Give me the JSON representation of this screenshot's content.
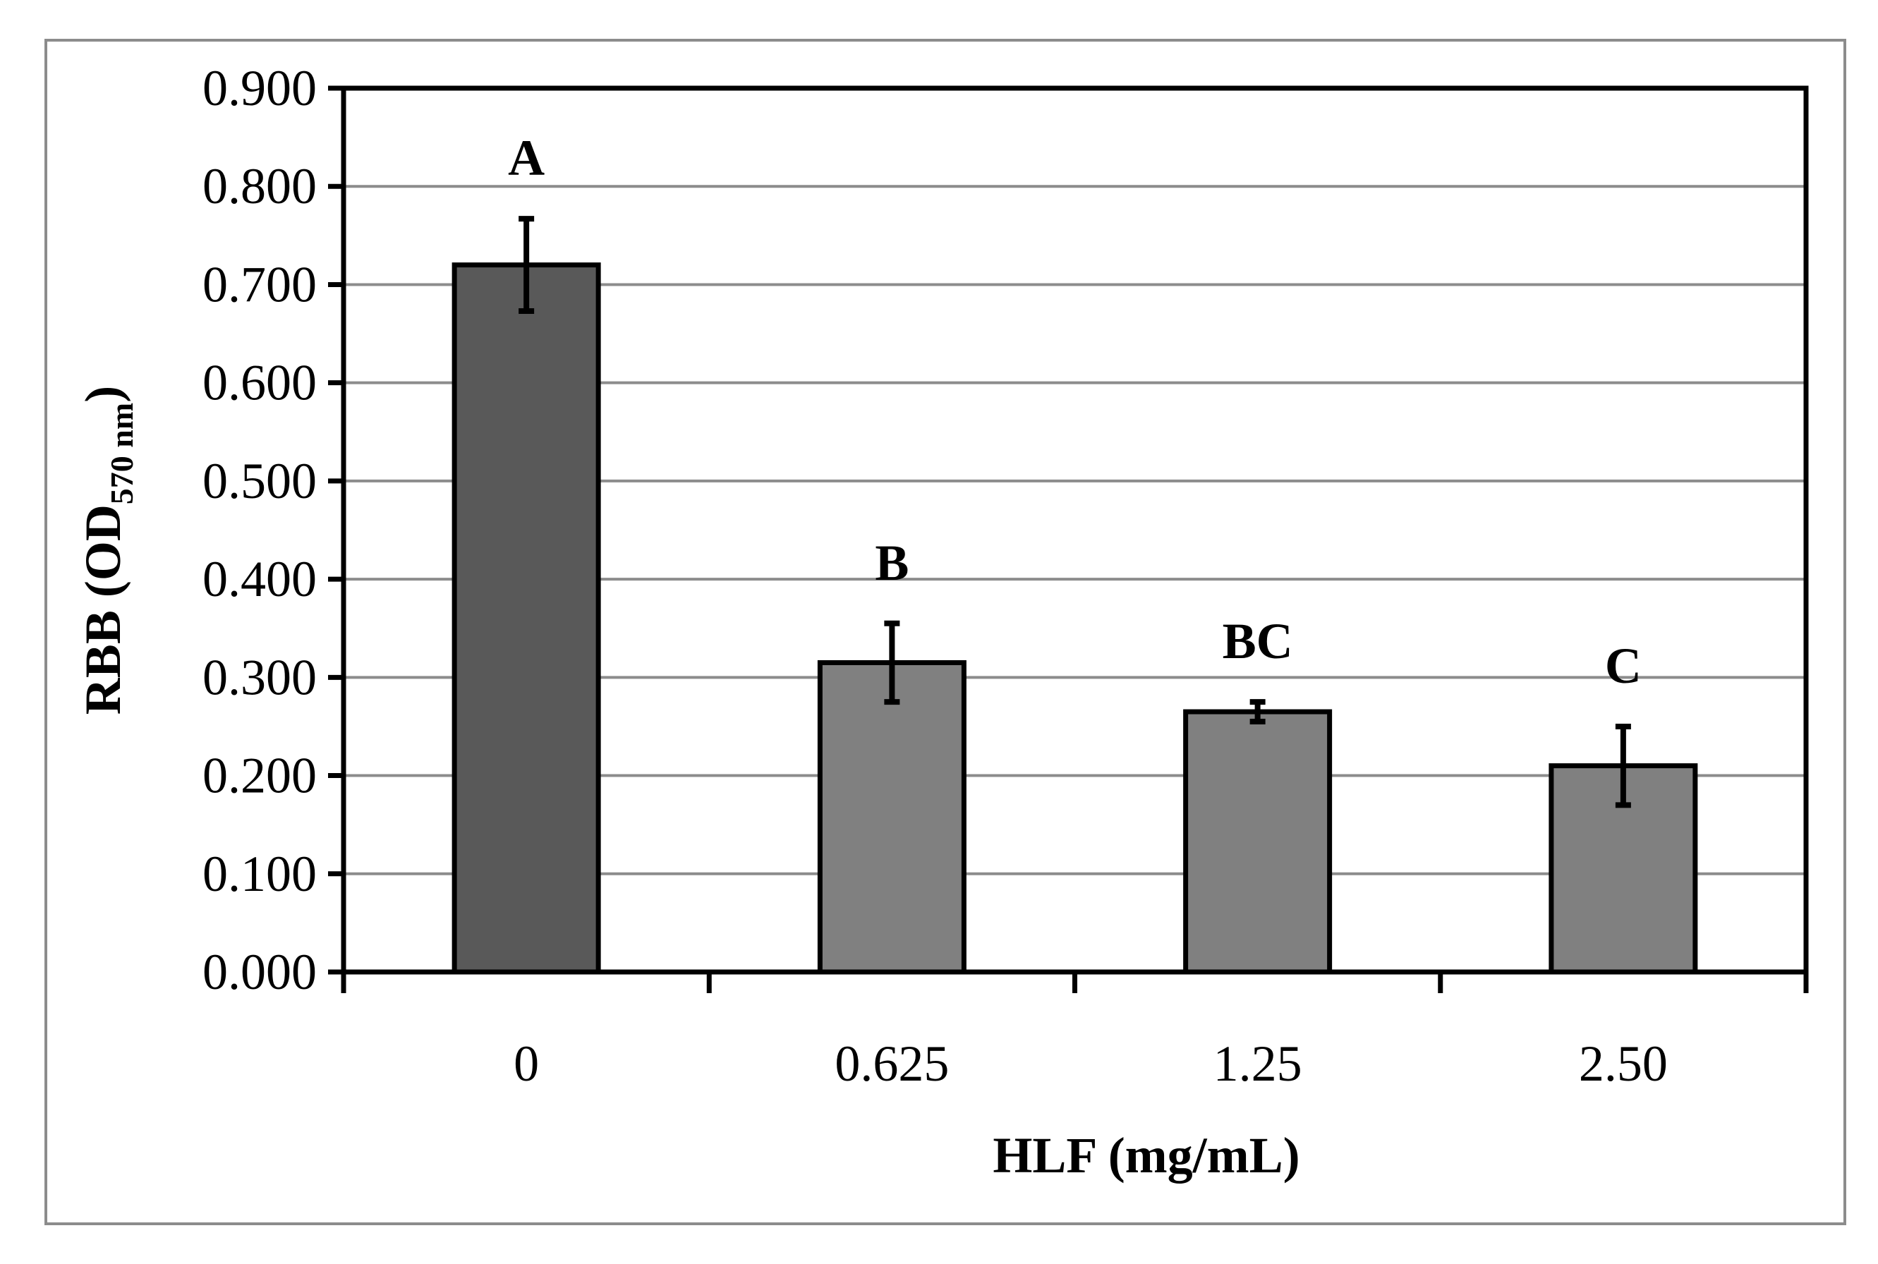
{
  "chart_data": {
    "type": "bar",
    "title": "",
    "xlabel": "HLF (mg/mL)",
    "ylabel": {
      "main": "RBB (OD",
      "subscript": "570 nm",
      "close": ")"
    },
    "categories": [
      "0",
      "0.625",
      "1.25",
      "2.50"
    ],
    "values": [
      0.72,
      0.315,
      0.265,
      0.21
    ],
    "errors": [
      0.047,
      0.04,
      0.01,
      0.04
    ],
    "significance": [
      "A",
      "B",
      "BC",
      "C"
    ],
    "bar_colors": [
      "#595959",
      "#808080",
      "#808080",
      "#808080"
    ],
    "ylim": [
      0,
      0.9
    ],
    "yticks": [
      0,
      0.1,
      0.2,
      0.3,
      0.4,
      0.5,
      0.6,
      0.7,
      0.8,
      0.9
    ],
    "ytick_labels": [
      "0.000",
      "0.100",
      "0.200",
      "0.300",
      "0.400",
      "0.500",
      "0.600",
      "0.700",
      "0.800",
      "0.900"
    ],
    "grid": true,
    "grid_color": "#8c8c8c"
  }
}
